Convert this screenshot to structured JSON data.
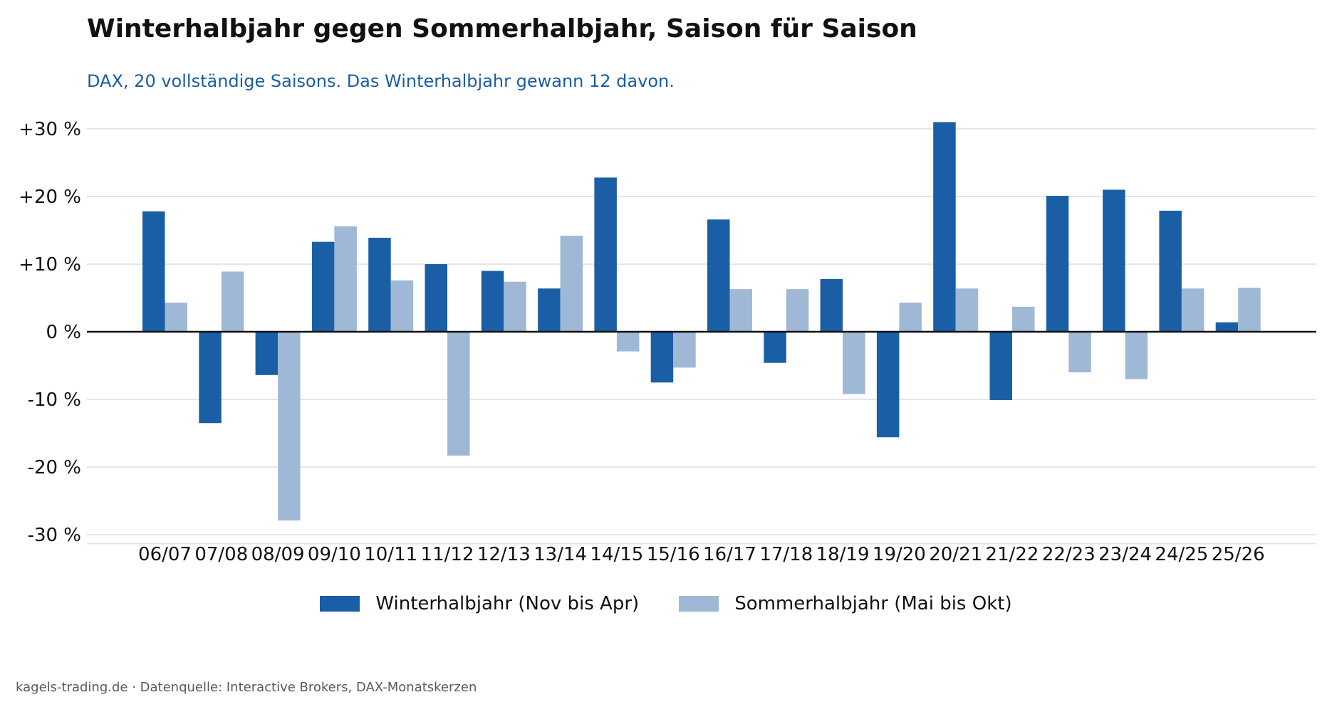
{
  "title": "Winterhalbjahr gegen Sommerhalbjahr, Saison für Saison",
  "subtitle": "DAX, 20 vollständige Saisons. Das Winterhalbjahr gewann 12 davon.",
  "footer": "kagels-trading.de · Datenquelle: Interactive Brokers, DAX-Monatskerzen",
  "colors": {
    "winter": "#1a5fa6",
    "summer": "#9fb8d6",
    "grid": "#e3e6ea",
    "zero": "#111111"
  },
  "chart_data": {
    "type": "bar",
    "title": "Winterhalbjahr gegen Sommerhalbjahr, Saison für Saison",
    "subtitle": "DAX, 20 vollständige Saisons. Das Winterhalbjahr gewann 12 davon.",
    "xlabel": "",
    "ylabel": "",
    "ylim": [
      -31,
      31
    ],
    "yticks": [
      -30,
      -20,
      -10,
      0,
      10,
      20,
      30
    ],
    "ytick_labels": [
      "-30 %",
      "-20 %",
      "-10 %",
      "0 %",
      "+10 %",
      "+20 %",
      "+30 %"
    ],
    "grid": true,
    "legend_position": "bottom-center",
    "categories": [
      "06/07",
      "07/08",
      "08/09",
      "09/10",
      "10/11",
      "11/12",
      "12/13",
      "13/14",
      "14/15",
      "15/16",
      "16/17",
      "17/18",
      "18/19",
      "19/20",
      "20/21",
      "21/22",
      "22/23",
      "23/24",
      "24/25",
      "25/26"
    ],
    "series": [
      {
        "name": "Winterhalbjahr (Nov bis Apr)",
        "values": [
          17.8,
          -13.5,
          -6.4,
          13.3,
          13.9,
          10.0,
          9.0,
          6.4,
          22.8,
          -7.5,
          16.6,
          -4.6,
          7.8,
          -15.6,
          31.0,
          -10.1,
          20.1,
          21.0,
          17.9,
          1.4
        ]
      },
      {
        "name": "Sommerhalbjahr (Mai bis Okt)",
        "values": [
          4.3,
          8.9,
          -27.9,
          15.6,
          7.6,
          -18.3,
          7.4,
          14.2,
          -2.9,
          -5.3,
          6.3,
          6.3,
          -9.2,
          4.3,
          6.4,
          3.7,
          -6.0,
          -7.0,
          6.4,
          6.5
        ]
      }
    ]
  }
}
